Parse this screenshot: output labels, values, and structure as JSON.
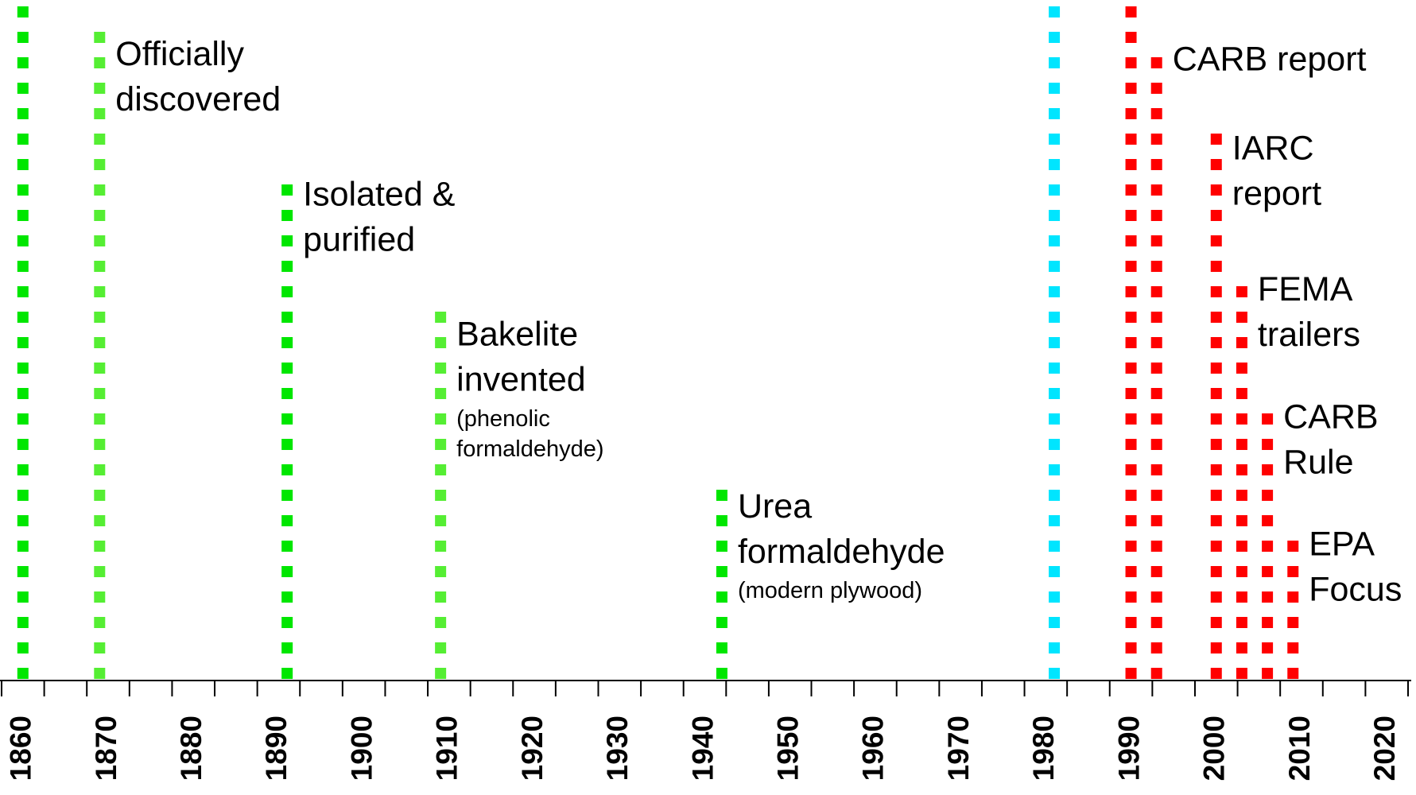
{
  "chart_data": {
    "type": "timeline",
    "xlim": [
      1857.5,
      2022.5
    ],
    "xticks": [
      1860,
      1870,
      1880,
      1890,
      1900,
      1910,
      1920,
      1930,
      1940,
      1950,
      1960,
      1970,
      1980,
      1990,
      2000,
      2010,
      2020
    ],
    "xminorticks": [
      1857.5,
      1862.5,
      1867.5,
      1872.5,
      1877.5,
      1882.5,
      1887.5,
      1892.5,
      1897.5,
      1902.5,
      1907.5,
      1912.5,
      1917.5,
      1922.5,
      1927.5,
      1932.5,
      1937.5,
      1942.5,
      1947.5,
      1952.5,
      1957.5,
      1962.5,
      1967.5,
      1972.5,
      1977.5,
      1982.5,
      1987.5,
      1992.5,
      1997.5,
      2002.5,
      2007.5,
      2012.5,
      2017.5,
      2022.5
    ],
    "events": [
      {
        "year": 1860,
        "color": "#00e600",
        "label": [],
        "note": []
      },
      {
        "year": 1869,
        "color": "#55ee33",
        "label": [
          "Officially",
          "discovered"
        ],
        "note": []
      },
      {
        "year": 1891,
        "color": "#00e600",
        "label": [
          "Isolated &",
          "purified"
        ],
        "note": []
      },
      {
        "year": 1909,
        "color": "#55ee33",
        "label": [
          "Bakelite",
          "invented"
        ],
        "note": [
          "(phenolic",
          "formaldehyde)"
        ]
      },
      {
        "year": 1942,
        "color": "#00e600",
        "label": [
          "Urea",
          "formaldehyde"
        ],
        "note": [
          "(modern plywood)"
        ]
      },
      {
        "year": 1981,
        "color": "#00e5ff",
        "label": [],
        "note": []
      },
      {
        "year": 1990,
        "color": "#ff0000",
        "label": [],
        "note": []
      },
      {
        "year": 1993,
        "color": "#ff0000",
        "label": [
          "CARB report"
        ],
        "note": []
      },
      {
        "year": 2000,
        "color": "#ff0000",
        "label": [
          "IARC",
          "report"
        ],
        "note": []
      },
      {
        "year": 2003,
        "color": "#ff0000",
        "label": [
          "FEMA",
          "trailers"
        ],
        "note": []
      },
      {
        "year": 2006,
        "color": "#ff0000",
        "label": [
          "CARB",
          "Rule"
        ],
        "note": []
      },
      {
        "year": 2009,
        "color": "#ff0000",
        "label": [
          "EPA",
          "Focus"
        ],
        "note": []
      }
    ]
  }
}
